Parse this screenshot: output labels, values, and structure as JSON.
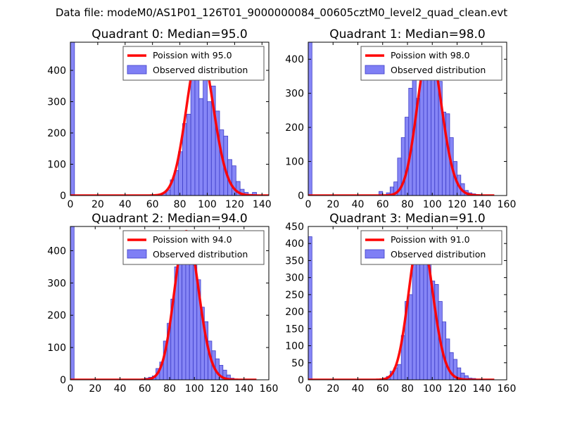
{
  "figure": {
    "suptitle": "Data file: modeM0/AS1P01_126T01_9000000084_00605cztM0_level2_quad_clean.evt"
  },
  "colors": {
    "hist_fill": "#7f7ff5",
    "hist_edge": "#3d3dc8",
    "poisson": "#ff0000",
    "axis": "#000000",
    "legend_edge": "#555555"
  },
  "chart_data": [
    {
      "type": "bar",
      "title": "Quadrant 0: Median=95.0",
      "xlim": [
        0,
        145
      ],
      "ylim": [
        0,
        490
      ],
      "xticks": [
        0,
        20,
        40,
        60,
        80,
        100,
        120,
        140
      ],
      "yticks": [
        0,
        100,
        200,
        300,
        400
      ],
      "bin_width": 3,
      "bins_start": [
        0,
        64,
        67,
        70,
        73,
        76,
        79,
        82,
        85,
        88,
        91,
        94,
        97,
        100,
        103,
        106,
        109,
        112,
        115,
        118,
        121,
        124,
        127,
        130,
        133
      ],
      "counts": [
        490,
        3,
        8,
        18,
        50,
        80,
        140,
        230,
        260,
        380,
        470,
        310,
        470,
        300,
        350,
        270,
        210,
        190,
        115,
        95,
        45,
        20,
        10,
        4,
        10
      ],
      "poisson_mean": 95.0,
      "poisson_peak": 470,
      "legend": {
        "line": "Poission with 95.0",
        "bars": "Observed distribution",
        "loc": "upper right"
      }
    },
    {
      "type": "bar",
      "title": "Quadrant 1: Median=98.0",
      "xlim": [
        0,
        160
      ],
      "ylim": [
        0,
        450
      ],
      "xticks": [
        0,
        20,
        40,
        60,
        80,
        100,
        120,
        140,
        160
      ],
      "yticks": [
        0,
        100,
        200,
        300,
        400
      ],
      "bin_width": 3,
      "bins_start": [
        0,
        57,
        63,
        66,
        69,
        72,
        75,
        78,
        81,
        84,
        87,
        90,
        93,
        96,
        99,
        102,
        105,
        108,
        111,
        114,
        117,
        120,
        123,
        126,
        129,
        132,
        135,
        138
      ],
      "counts": [
        450,
        12,
        8,
        25,
        40,
        110,
        170,
        230,
        315,
        340,
        285,
        400,
        420,
        380,
        390,
        400,
        335,
        245,
        240,
        170,
        100,
        60,
        35,
        15,
        8,
        5,
        3,
        2
      ],
      "poisson_mean": 98.0,
      "poisson_peak": 430,
      "legend": {
        "line": "Poission with 98.0",
        "bars": "Observed distribution",
        "loc": "upper right"
      }
    },
    {
      "type": "bar",
      "title": "Quadrant 2: Median=94.0",
      "xlim": [
        0,
        160
      ],
      "ylim": [
        0,
        475
      ],
      "xticks": [
        0,
        20,
        40,
        60,
        80,
        100,
        120,
        140,
        160
      ],
      "yticks": [
        0,
        100,
        200,
        300,
        400
      ],
      "bin_width": 3,
      "bins_start": [
        0,
        60,
        63,
        66,
        69,
        72,
        75,
        78,
        81,
        84,
        87,
        90,
        93,
        96,
        99,
        102,
        105,
        108,
        111,
        114,
        117,
        120,
        123,
        126,
        129
      ],
      "counts": [
        475,
        5,
        8,
        12,
        35,
        55,
        120,
        175,
        250,
        350,
        390,
        440,
        450,
        440,
        355,
        310,
        225,
        180,
        120,
        90,
        65,
        45,
        30,
        15,
        5
      ],
      "poisson_mean": 94.0,
      "poisson_peak": 460,
      "legend": {
        "line": "Poission with 94.0",
        "bars": "Observed distribution",
        "loc": "upper right"
      }
    },
    {
      "type": "bar",
      "title": "Quadrant 3: Median=91.0",
      "xlim": [
        0,
        160
      ],
      "ylim": [
        0,
        450
      ],
      "xticks": [
        0,
        20,
        40,
        60,
        80,
        100,
        120,
        140,
        160
      ],
      "yticks": [
        0,
        50,
        100,
        150,
        200,
        250,
        300,
        350,
        400,
        450
      ],
      "bin_width": 3,
      "bins_start": [
        0,
        60,
        63,
        66,
        69,
        72,
        75,
        78,
        81,
        84,
        87,
        90,
        93,
        96,
        99,
        102,
        105,
        108,
        111,
        114,
        117,
        120,
        123,
        126,
        129,
        132,
        138
      ],
      "counts": [
        420,
        5,
        10,
        25,
        35,
        45,
        130,
        230,
        250,
        380,
        350,
        420,
        410,
        420,
        290,
        280,
        230,
        170,
        120,
        80,
        60,
        35,
        20,
        12,
        5,
        4,
        2
      ],
      "poisson_mean": 91.0,
      "poisson_peak": 430,
      "legend": {
        "line": "Poission with 91.0",
        "bars": "Observed distribution",
        "loc": "upper right"
      }
    }
  ]
}
